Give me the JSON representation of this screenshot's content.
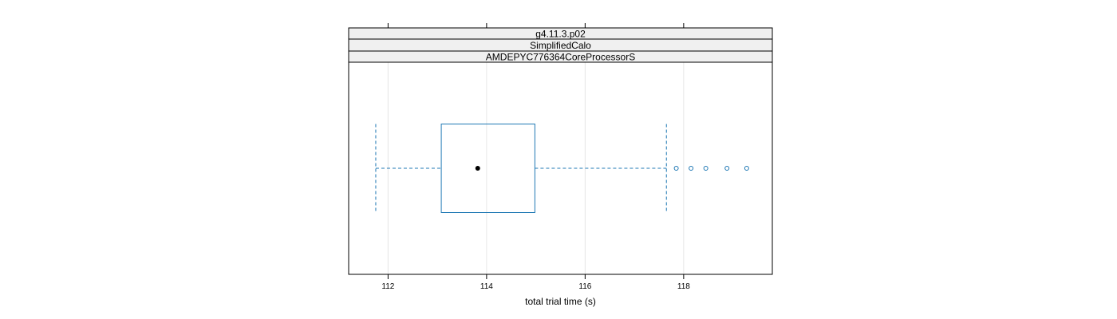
{
  "chart_data": {
    "type": "boxplot",
    "orientation": "horizontal",
    "panel": {
      "strips": [
        "g4.11.3.p02",
        "SimplifiedCalo",
        "AMDEPYC776364CoreProcessorS"
      ]
    },
    "xlabel": "total trial time (s)",
    "xlim": [
      111.2,
      119.8
    ],
    "xticks": [
      112,
      114,
      116,
      118
    ],
    "grid": true,
    "box": {
      "whisker_low": 111.75,
      "q1": 113.08,
      "median": 113.82,
      "q3": 114.98,
      "whisker_high": 117.65,
      "outliers": [
        117.85,
        118.15,
        118.45,
        118.88,
        119.28
      ]
    },
    "colors": {
      "box": "#1f78b4",
      "median_dot": "#000000",
      "strip_fill": "#f0f0f0",
      "grid": "#e6e6e6",
      "frame": "#000000"
    }
  }
}
